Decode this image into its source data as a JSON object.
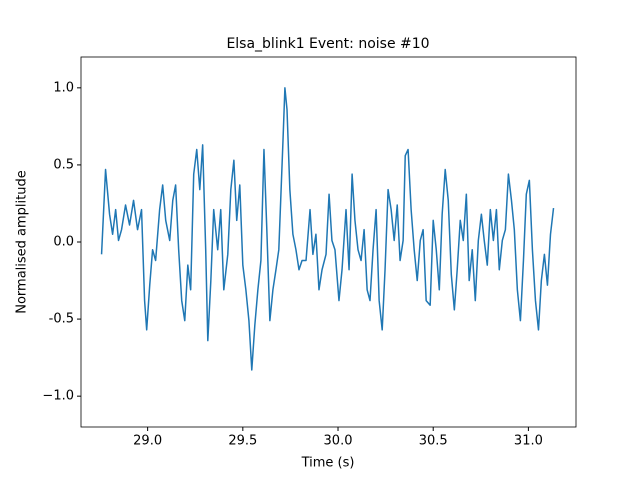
{
  "chart_data": {
    "type": "line",
    "title": "Elsa_blink1 Event: noise #10",
    "xlabel": "Time (s)",
    "ylabel": "Normalised amplitude",
    "x": [
      28.758,
      28.779,
      28.8,
      28.816,
      28.832,
      28.847,
      28.863,
      28.884,
      28.905,
      28.926,
      28.947,
      28.968,
      28.984,
      28.995,
      29.011,
      29.026,
      29.042,
      29.063,
      29.079,
      29.095,
      29.116,
      29.132,
      29.147,
      29.163,
      29.179,
      29.195,
      29.211,
      29.226,
      29.242,
      29.258,
      29.274,
      29.289,
      29.305,
      29.316,
      29.332,
      29.347,
      29.368,
      29.384,
      29.4,
      29.421,
      29.437,
      29.453,
      29.468,
      29.484,
      29.5,
      29.516,
      29.532,
      29.547,
      29.563,
      29.579,
      29.595,
      29.611,
      29.626,
      29.642,
      29.658,
      29.674,
      29.689,
      29.711,
      29.721,
      29.732,
      29.747,
      29.763,
      29.779,
      29.795,
      29.811,
      29.832,
      29.853,
      29.868,
      29.884,
      29.9,
      29.916,
      29.937,
      29.953,
      29.968,
      29.984,
      30.005,
      30.021,
      30.042,
      30.058,
      30.074,
      30.089,
      30.105,
      30.121,
      30.137,
      30.153,
      30.168,
      30.184,
      30.2,
      30.216,
      30.232,
      30.247,
      30.263,
      30.279,
      30.295,
      30.311,
      30.326,
      30.342,
      30.353,
      30.368,
      30.384,
      30.4,
      30.416,
      30.432,
      30.447,
      30.463,
      30.484,
      30.5,
      30.516,
      30.532,
      30.547,
      30.563,
      30.579,
      30.595,
      30.611,
      30.626,
      30.642,
      30.658,
      30.674,
      30.689,
      30.705,
      30.721,
      30.737,
      30.753,
      30.768,
      30.784,
      30.8,
      30.816,
      30.832,
      30.847,
      30.863,
      30.879,
      30.895,
      30.911,
      30.926,
      30.942,
      30.958,
      30.974,
      30.989,
      31.005,
      31.021,
      31.037,
      31.053,
      31.068,
      31.084,
      31.1,
      31.116,
      31.132
    ],
    "series": [
      {
        "color": "#1f77b4",
        "values": [
          -0.08,
          0.47,
          0.18,
          0.05,
          0.21,
          0.01,
          0.08,
          0.24,
          0.11,
          0.27,
          0.08,
          0.21,
          -0.38,
          -0.57,
          -0.28,
          -0.05,
          -0.12,
          0.21,
          0.37,
          0.14,
          0.01,
          0.27,
          0.37,
          -0.05,
          -0.38,
          -0.51,
          -0.15,
          -0.31,
          0.44,
          0.6,
          0.34,
          0.63,
          -0.05,
          -0.64,
          -0.25,
          0.21,
          -0.05,
          0.21,
          -0.31,
          -0.08,
          0.34,
          0.53,
          0.14,
          0.37,
          -0.15,
          -0.31,
          -0.51,
          -0.83,
          -0.54,
          -0.31,
          -0.12,
          0.6,
          0.08,
          -0.51,
          -0.31,
          -0.18,
          -0.05,
          0.66,
          1.0,
          0.86,
          0.34,
          0.05,
          -0.05,
          -0.18,
          -0.12,
          -0.12,
          0.21,
          -0.08,
          0.05,
          -0.31,
          -0.18,
          -0.08,
          0.31,
          0.01,
          -0.05,
          -0.38,
          -0.18,
          0.21,
          -0.18,
          0.44,
          0.14,
          -0.05,
          -0.12,
          0.08,
          -0.31,
          -0.38,
          -0.05,
          0.21,
          -0.38,
          -0.57,
          -0.18,
          0.34,
          0.21,
          0.01,
          0.24,
          -0.12,
          0.01,
          0.56,
          0.6,
          0.21,
          -0.05,
          -0.25,
          0.01,
          0.08,
          -0.38,
          -0.41,
          0.14,
          -0.05,
          -0.31,
          0.18,
          0.47,
          0.27,
          -0.21,
          -0.44,
          -0.18,
          0.14,
          0.01,
          0.31,
          -0.25,
          -0.05,
          -0.38,
          0.01,
          0.18,
          0.01,
          -0.15,
          0.21,
          0.01,
          0.21,
          -0.18,
          0.01,
          0.08,
          0.44,
          0.27,
          0.08,
          -0.31,
          -0.51,
          -0.12,
          0.31,
          0.4,
          -0.05,
          -0.38,
          -0.57,
          -0.25,
          -0.08,
          -0.28,
          0.05,
          0.22
        ]
      }
    ],
    "xlim": [
      28.65,
      31.25
    ],
    "ylim": [
      -1.2,
      1.2
    ],
    "xticks": [
      {
        "value": 29,
        "label": "29.0"
      },
      29.5,
      {
        "value": 30,
        "label": "30.0"
      },
      30.5,
      {
        "value": 31,
        "label": "31.0"
      }
    ],
    "yticks": [
      {
        "value": -1,
        "label": "−1.0"
      },
      -0.5,
      {
        "value": 0,
        "label": "0.0"
      },
      0.5,
      {
        "value": 1,
        "label": "1.0"
      }
    ]
  }
}
